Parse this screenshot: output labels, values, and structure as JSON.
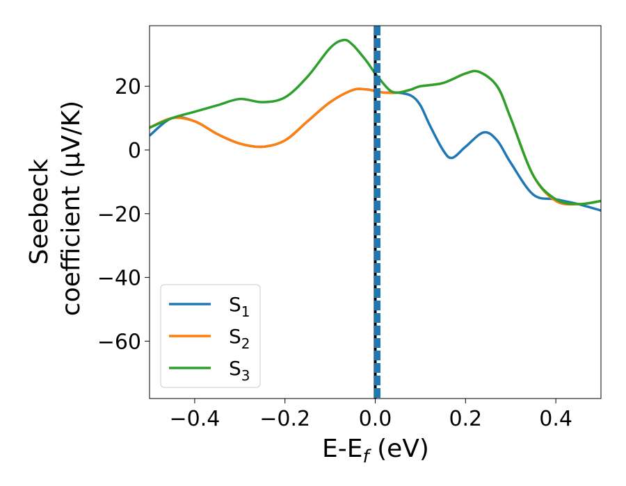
{
  "chart_data": {
    "type": "line",
    "title": "",
    "xlabel": "E-E",
    "xlabel_sub": "f",
    "xlabel_unit": " (eV)",
    "ylabel_line1": "Seebeck",
    "ylabel_line2": "coefficient  (μV/K)",
    "xlim": [
      -0.5,
      0.5
    ],
    "ylim": [
      -78,
      39
    ],
    "xticks": [
      -0.4,
      -0.2,
      0.0,
      0.2,
      0.4
    ],
    "xtick_labels": [
      "−0.4",
      "−0.2",
      "0.0",
      "0.2",
      "0.4"
    ],
    "yticks": [
      20,
      0,
      -20,
      -40,
      -60
    ],
    "ytick_labels": [
      "20",
      "0",
      "−20",
      "−40",
      "−60"
    ],
    "vline_x": 0.0,
    "legend_position": "lower-left",
    "series": [
      {
        "name": "S",
        "sub": "1",
        "color": "#1f77b4",
        "x": [
          -0.5,
          -0.45,
          -0.4,
          -0.35,
          -0.3,
          -0.25,
          -0.2,
          -0.15,
          -0.1,
          -0.05,
          -0.02,
          0.0,
          0.02,
          0.05,
          0.08,
          0.1,
          0.12,
          0.15,
          0.17,
          0.2,
          0.24,
          0.27,
          0.3,
          0.35,
          0.4,
          0.45,
          0.5
        ],
        "y": [
          4.5,
          10,
          9,
          5,
          2,
          1,
          3,
          9,
          15,
          18.8,
          19,
          18.5,
          18,
          18,
          17,
          14,
          8,
          0,
          -2.5,
          1,
          5.5,
          3,
          -4,
          -14,
          -15.5,
          -17,
          -19
        ]
      },
      {
        "name": "S",
        "sub": "2",
        "color": "#ff7f0e",
        "x": [
          -0.5,
          -0.45,
          -0.4,
          -0.35,
          -0.3,
          -0.25,
          -0.2,
          -0.15,
          -0.1,
          -0.05,
          -0.02,
          0.0,
          0.02,
          0.05,
          0.08,
          0.1,
          0.15,
          0.2,
          0.23,
          0.27,
          0.3,
          0.35,
          0.4,
          0.45,
          0.5
        ],
        "y": [
          7,
          10,
          9,
          5,
          2,
          1,
          3,
          9,
          15,
          18.8,
          19,
          18.5,
          18,
          18,
          19,
          20,
          21,
          24,
          24.5,
          20,
          10,
          -8,
          -16,
          -17,
          -16
        ]
      },
      {
        "name": "S",
        "sub": "3",
        "color": "#2ca02c",
        "x": [
          -0.5,
          -0.45,
          -0.4,
          -0.35,
          -0.3,
          -0.25,
          -0.2,
          -0.15,
          -0.1,
          -0.07,
          -0.05,
          -0.02,
          0.0,
          0.03,
          0.05,
          0.08,
          0.1,
          0.15,
          0.2,
          0.23,
          0.27,
          0.3,
          0.35,
          0.4,
          0.45,
          0.5
        ],
        "y": [
          7,
          10,
          12,
          14,
          16,
          15,
          16.5,
          23,
          32,
          34.5,
          33,
          28,
          24,
          19,
          18,
          19,
          20,
          21,
          24,
          24.5,
          20,
          10,
          -8,
          -15.5,
          -17,
          -16
        ]
      }
    ]
  }
}
